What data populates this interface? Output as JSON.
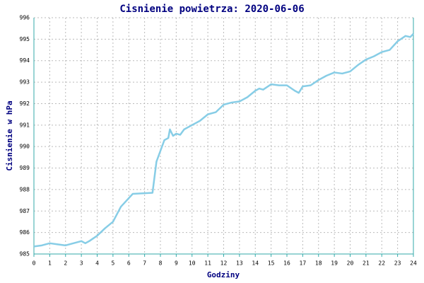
{
  "chart_data": {
    "type": "line",
    "title": "Cisnienie powietrza: 2020-06-06",
    "x_label": "Godziny",
    "y_label": "Cisnienie w hPa",
    "xlim": [
      0,
      24
    ],
    "ylim": [
      985,
      996
    ],
    "xticks": [
      0,
      1,
      2,
      3,
      4,
      5,
      6,
      7,
      8,
      9,
      10,
      11,
      12,
      13,
      14,
      15,
      16,
      17,
      18,
      19,
      20,
      21,
      22,
      23,
      24
    ],
    "yticks": [
      985,
      986,
      987,
      988,
      989,
      990,
      991,
      992,
      993,
      994,
      995,
      996
    ],
    "grid": true,
    "series": [
      {
        "name": "Cisnienie",
        "color": "#87cde6",
        "x": [
          0,
          0.5,
          1,
          1.5,
          2,
          2.5,
          3,
          3.25,
          3.5,
          4,
          4.5,
          5,
          5.5,
          6,
          6.25,
          7.5,
          7.75,
          8,
          8.25,
          8.5,
          8.6,
          8.8,
          9,
          9.25,
          9.5,
          10,
          10.5,
          11,
          11.5,
          12,
          12.5,
          13,
          13.5,
          14,
          14.25,
          14.5,
          15,
          15.5,
          16,
          16.5,
          16.75,
          17,
          17.5,
          18,
          18.5,
          19,
          19.5,
          20,
          20.5,
          21,
          21.5,
          22,
          22.5,
          23,
          23.5,
          23.8,
          24
        ],
        "values": [
          985.35,
          985.4,
          985.5,
          985.45,
          985.4,
          985.5,
          985.6,
          985.5,
          985.6,
          985.85,
          986.2,
          986.5,
          987.2,
          987.6,
          987.8,
          987.85,
          989.3,
          989.8,
          990.3,
          990.4,
          990.8,
          990.5,
          990.6,
          990.55,
          990.8,
          991.0,
          991.2,
          991.5,
          991.6,
          991.95,
          992.05,
          992.1,
          992.3,
          992.6,
          992.7,
          992.65,
          992.9,
          992.85,
          992.85,
          992.6,
          992.5,
          992.8,
          992.85,
          993.1,
          993.3,
          993.45,
          993.4,
          993.5,
          993.8,
          994.05,
          994.2,
          994.4,
          994.5,
          994.9,
          995.15,
          995.1,
          995.25
        ]
      }
    ]
  }
}
